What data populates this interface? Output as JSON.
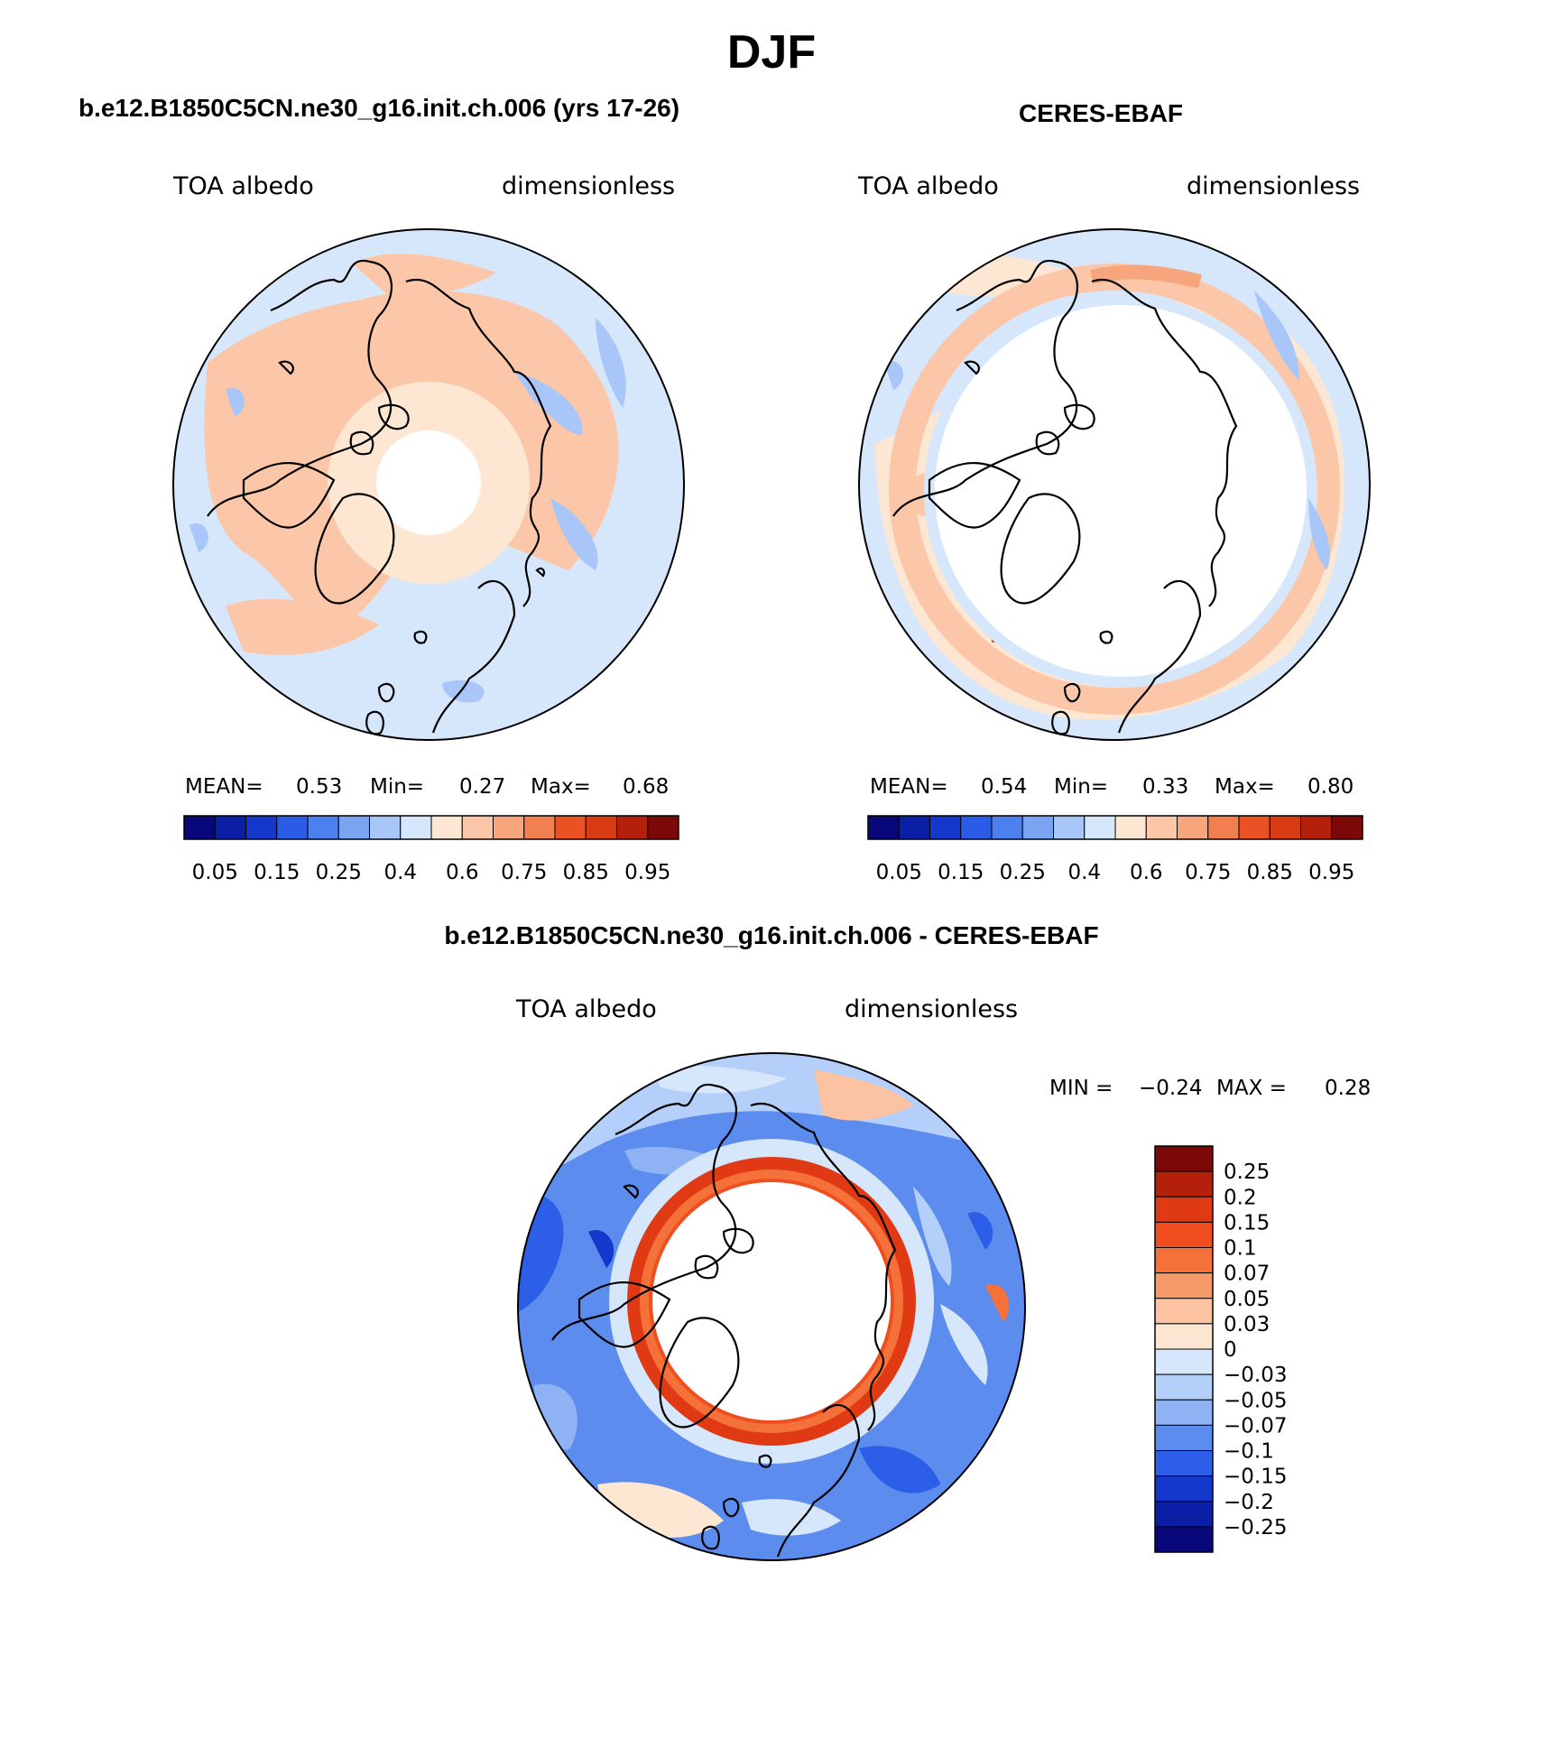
{
  "title": "DJF",
  "panels": [
    {
      "id": "model",
      "title": "b.e12.B1850C5CN.ne30_g16.init.ch.006 (yrs 17-26)",
      "left_label": "TOA albedo",
      "right_label": "dimensionless",
      "stats": {
        "mean_label": "MEAN=",
        "mean": "0.53",
        "min_label": "Min=",
        "min": "0.27",
        "max_label": "Max=",
        "max": "0.68"
      },
      "colorbar_labels": [
        "0.05",
        "0.15",
        "0.25",
        "0.4",
        "0.6",
        "0.75",
        "0.85",
        "0.95"
      ]
    },
    {
      "id": "obs",
      "title": "CERES-EBAF",
      "left_label": "TOA albedo",
      "right_label": "dimensionless",
      "stats": {
        "mean_label": "MEAN=",
        "mean": "0.54",
        "min_label": "Min=",
        "min": "0.33",
        "max_label": "Max=",
        "max": "0.80"
      },
      "colorbar_labels": [
        "0.05",
        "0.15",
        "0.25",
        "0.4",
        "0.6",
        "0.75",
        "0.85",
        "0.95"
      ]
    },
    {
      "id": "diff",
      "title": "b.e12.B1850C5CN.ne30_g16.init.ch.006 - CERES-EBAF",
      "left_label": "TOA albedo",
      "right_label": "dimensionless",
      "stats": {
        "min_label": "MIN =",
        "min": "−0.24",
        "max_label": "MAX =",
        "max": "0.28"
      },
      "colorbar_labels": [
        "0.25",
        "0.2",
        "0.15",
        "0.1",
        "0.07",
        "0.05",
        "0.03",
        "0",
        "−0.03",
        "−0.05",
        "−0.07",
        "−0.1",
        "−0.15",
        "−0.2",
        "−0.25"
      ]
    }
  ],
  "colors": {
    "abs_scale": [
      "#08087a",
      "#0a1fa6",
      "#1538cc",
      "#2a5ce8",
      "#4c80ee",
      "#7aa3f2",
      "#a8c6f8",
      "#d6e7fc",
      "#fde7d3",
      "#fbc7a8",
      "#f7a57c",
      "#f27f50",
      "#ea5224",
      "#d83a12",
      "#b4200c",
      "#7c0808"
    ],
    "diff_scale": [
      "#7c0808",
      "#b4200c",
      "#e03a14",
      "#f04e1e",
      "#f5713a",
      "#f79a6a",
      "#fbc3a2",
      "#fde7d3",
      "#d6e7fc",
      "#b4cffa",
      "#8fb2f4",
      "#5b8cee",
      "#2c5ee8",
      "#1538cc",
      "#0a1fa6",
      "#08087a"
    ]
  }
}
